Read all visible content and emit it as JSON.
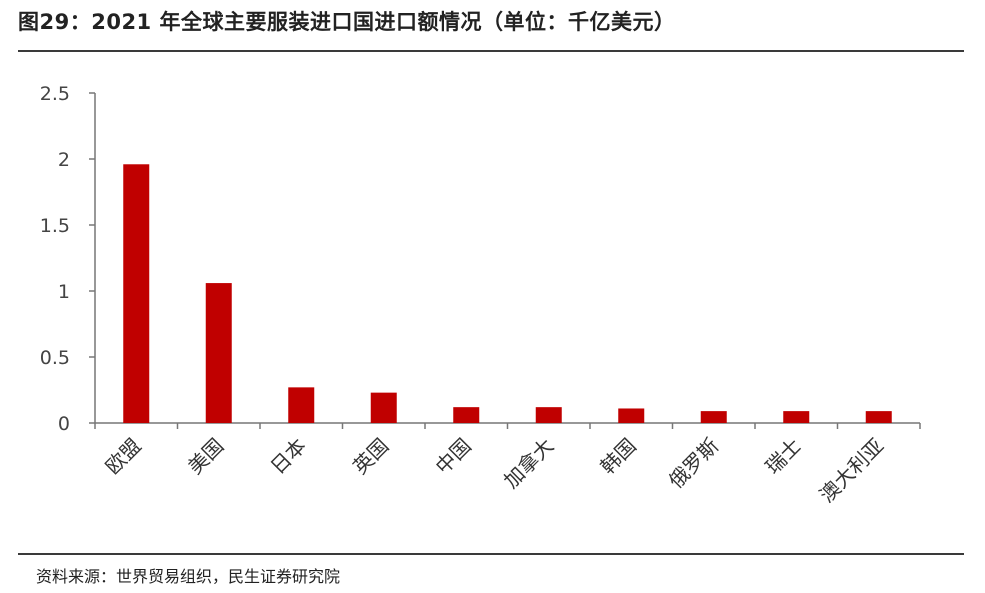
{
  "header": {
    "title": "图29：2021 年全球主要服装进口国进口额情况（单位：千亿美元）"
  },
  "footer": {
    "source": "资料来源：世界贸易组织，民生证券研究院"
  },
  "colors": {
    "bar": "#c00000",
    "axis": "#777777",
    "rule": "#3a3a3a"
  },
  "chart_data": {
    "type": "bar",
    "title": "图29：2021 年全球主要服装进口国进口额情况（单位：千亿美元）",
    "categories": [
      "欧盟",
      "美国",
      "日本",
      "英国",
      "中国",
      "加拿大",
      "韩国",
      "俄罗斯",
      "瑞士",
      "澳大利亚"
    ],
    "values": [
      1.96,
      1.06,
      0.27,
      0.23,
      0.12,
      0.12,
      0.11,
      0.09,
      0.09,
      0.09
    ],
    "yticks": [
      "0",
      "0.5",
      "1",
      "1.5",
      "2",
      "2.5"
    ],
    "ylim": [
      0,
      2.5
    ],
    "xlabel": "",
    "ylabel": "",
    "grid": false,
    "legend": "none"
  }
}
